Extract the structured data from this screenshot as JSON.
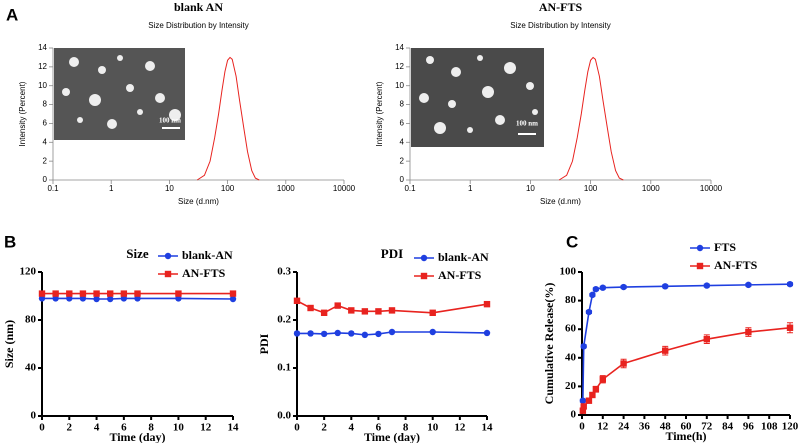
{
  "panel_labels": [
    "A",
    "B",
    "C"
  ],
  "chart_data": [
    {
      "type": "line",
      "title": "blank AN",
      "subtitle": "Size Distribution by Intensity",
      "inset_scale": "100 nm",
      "xlabel": "Size (d.nm)",
      "ylabel": "Intensity (Percent)",
      "xscale": "log",
      "x": [
        30,
        40,
        50,
        60,
        70,
        80,
        90,
        100,
        110,
        120,
        140,
        160,
        190,
        220,
        260,
        300,
        350
      ],
      "series": [
        {
          "color": "#e8231f",
          "values": [
            0,
            0.5,
            2,
            4.5,
            7,
            9.5,
            11.5,
            12.7,
            13,
            12.8,
            11,
            8.5,
            5.5,
            3,
            1,
            0.2,
            0
          ]
        }
      ],
      "xlim": [
        0.1,
        10000
      ],
      "xticks": [
        0.1,
        1,
        10,
        100,
        1000,
        10000
      ],
      "ylim": [
        0,
        14
      ],
      "yticks": [
        0,
        2,
        4,
        6,
        8,
        10,
        12,
        14
      ]
    },
    {
      "type": "line",
      "title": "AN-FTS",
      "subtitle": "Size Distribution by Intensity",
      "inset_scale": "100 nm",
      "xlabel": "Size (d.nm)",
      "ylabel": "Intensity (Percent)",
      "xscale": "log",
      "x": [
        30,
        40,
        50,
        60,
        70,
        80,
        90,
        100,
        110,
        120,
        140,
        160,
        190,
        220,
        260,
        300,
        350
      ],
      "series": [
        {
          "color": "#e8231f",
          "values": [
            0,
            0.5,
            2,
            4.5,
            7,
            9.5,
            11.5,
            12.7,
            13,
            12.8,
            11,
            8.5,
            5.5,
            3,
            1,
            0.2,
            0
          ]
        }
      ],
      "xlim": [
        0.1,
        10000
      ],
      "xticks": [
        0.1,
        1,
        10,
        100,
        1000,
        10000
      ],
      "ylim": [
        0,
        14
      ],
      "yticks": [
        0,
        2,
        4,
        6,
        8,
        10,
        12,
        14
      ]
    },
    {
      "type": "line",
      "title": "Size",
      "xlabel": "Time (day)",
      "ylabel": "Size (nm)",
      "x": [
        0,
        1,
        2,
        3,
        4,
        5,
        6,
        7,
        10,
        14
      ],
      "series": [
        {
          "name": "blank-AN",
          "color": "#1f3fe0",
          "marker": "circle",
          "values": [
            98,
            98,
            98,
            98,
            97.5,
            97.5,
            98,
            98,
            98,
            97.5
          ]
        },
        {
          "name": "AN-FTS",
          "color": "#e8231f",
          "marker": "square",
          "values": [
            102,
            102,
            102,
            102,
            102,
            102,
            102,
            102,
            102,
            102
          ]
        }
      ],
      "xlim": [
        0,
        14
      ],
      "xticks": [
        0,
        2,
        4,
        6,
        8,
        10,
        12,
        14
      ],
      "ylim": [
        0,
        120
      ],
      "yticks": [
        0,
        40,
        80,
        120
      ]
    },
    {
      "type": "line",
      "title": "PDI",
      "xlabel": "Time (day)",
      "ylabel": "PDI",
      "x": [
        0,
        1,
        2,
        3,
        4,
        5,
        6,
        7,
        10,
        14
      ],
      "series": [
        {
          "name": "blank-AN",
          "color": "#1f3fe0",
          "marker": "circle",
          "values": [
            0.172,
            0.172,
            0.171,
            0.173,
            0.172,
            0.169,
            0.171,
            0.175,
            0.175,
            0.173
          ]
        },
        {
          "name": "AN-FTS",
          "color": "#e8231f",
          "marker": "square",
          "values": [
            0.24,
            0.225,
            0.215,
            0.23,
            0.22,
            0.218,
            0.218,
            0.22,
            0.215,
            0.233
          ]
        }
      ],
      "xlim": [
        0,
        14
      ],
      "xticks": [
        0,
        2,
        4,
        6,
        8,
        10,
        12,
        14
      ],
      "ylim": [
        0,
        0.3
      ],
      "yticks": [
        {
          "value": 0,
          "label": "0.0"
        },
        0.1,
        0.2,
        0.3
      ]
    },
    {
      "type": "line",
      "xlabel": "Time(h)",
      "ylabel": "Cumulative Release(%)",
      "x": [
        0.5,
        1,
        4,
        6,
        8,
        12,
        24,
        48,
        72,
        96,
        120
      ],
      "series": [
        {
          "name": "FTS",
          "color": "#1f3fe0",
          "marker": "circle",
          "values": [
            10,
            48,
            72,
            84,
            88,
            89,
            89.5,
            90,
            90.5,
            91,
            91.5
          ],
          "errors": [
            1,
            1,
            1,
            1,
            1,
            1,
            1,
            1,
            1,
            1,
            1
          ]
        },
        {
          "name": "AN-FTS",
          "color": "#e8231f",
          "marker": "square",
          "values": [
            3,
            6,
            10,
            14,
            18,
            25,
            36,
            45,
            53,
            58,
            61
          ],
          "errors": [
            1,
            1,
            1.5,
            1.5,
            2,
            2.5,
            3,
            3,
            3,
            3,
            3.5
          ]
        }
      ],
      "xlim": [
        0,
        120
      ],
      "xticks": [
        0,
        12,
        24,
        36,
        48,
        60,
        72,
        84,
        96,
        108,
        120
      ],
      "ylim": [
        0,
        100
      ],
      "yticks": [
        0,
        20,
        40,
        60,
        80,
        100
      ]
    }
  ]
}
